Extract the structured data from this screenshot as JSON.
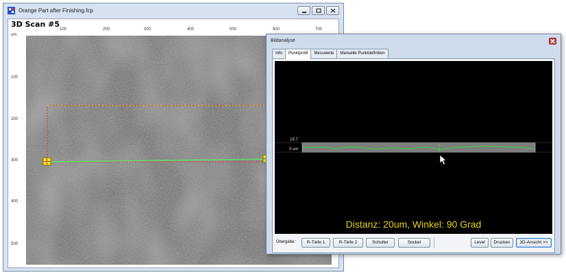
{
  "main_window": {
    "title": "Orange Part after Finishing.fcp",
    "scan_title": "3D Scan #5",
    "x_axis_ticks": [
      "100",
      "200",
      "300",
      "400",
      "500",
      "600",
      "700"
    ],
    "y_axis_unit": "um",
    "y_axis_ticks": [
      "100",
      "200",
      "300",
      "400",
      "500"
    ]
  },
  "dialog": {
    "title": "Bildanalyse",
    "tabs": [
      "Info",
      "Punktprofil",
      "Messwerte",
      "Manuelle Punktdefinition"
    ],
    "active_tab": "Punktprofil",
    "profile_top_label": "19.7",
    "profile_zero_label": "0 um",
    "distance_text": "Distanz: 20um, Winkel: 90 Grad",
    "uebergabe_label": "Übergabe:",
    "buttons": {
      "r_tiefe_1": "R-Tiefe 1",
      "r_tiefe_2": "R-Tiefe 2",
      "schulter": "Schulter",
      "sockel": "Sockel",
      "level": "Level",
      "drucken": "Drucken",
      "ansicht_3d": "3D-Ansicht >>"
    }
  },
  "colors": {
    "profile_line": "#3ed24b",
    "distance_text": "#e6d21e",
    "selection_rect": "#e0322a",
    "marker_line": "#5ee86a",
    "marker_handle": "#e8e81a"
  }
}
